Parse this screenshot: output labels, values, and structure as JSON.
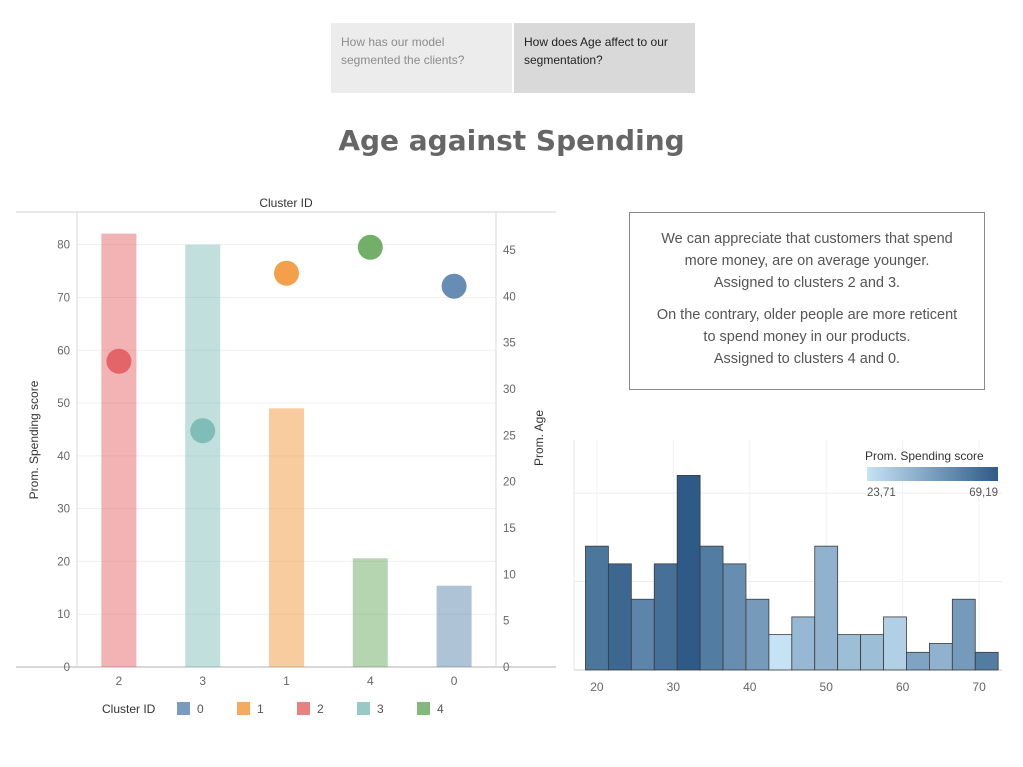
{
  "tabs": [
    {
      "label": "How has our model segmented the clients?",
      "active": false
    },
    {
      "label": "How does Age affect to our segmentation?",
      "active": true
    }
  ],
  "title": "Age against Spending",
  "note": {
    "p1": [
      "We can appreciate that customers that spend",
      "more money, are on average younger.",
      "Assigned to clusters 2 and 3."
    ],
    "p2": [
      "On the contrary, older people are more reticent",
      "to spend money in our products.",
      "Assigned to clusters 4 and 0."
    ]
  },
  "chart_data": [
    {
      "type": "bar",
      "title": "Cluster ID",
      "ylabel": "Prom. Spending score",
      "y2label": "Prom. Age",
      "categories": [
        "2",
        "3",
        "1",
        "4",
        "0"
      ],
      "bar_values": [
        82.1,
        80.0,
        49.0,
        20.6,
        15.4
      ],
      "dot_values": [
        33.0,
        25.5,
        42.5,
        45.3,
        41.1
      ],
      "ylim": [
        0,
        86
      ],
      "y2lim": [
        0,
        49
      ],
      "y_ticks": [
        0,
        10,
        20,
        30,
        40,
        50,
        60,
        70,
        80
      ],
      "y2_ticks": [
        0,
        5,
        10,
        15,
        20,
        25,
        30,
        35,
        40,
        45
      ],
      "colors": {
        "0": "#4e79a7",
        "1": "#f28e2b",
        "2": "#e15759",
        "3": "#76b7b2",
        "4": "#59a14f"
      },
      "legend": {
        "title": "Cluster ID",
        "items": [
          "0",
          "1",
          "2",
          "3",
          "4"
        ]
      },
      "grid": true
    },
    {
      "type": "bar",
      "subtype": "histogram",
      "bins": [
        {
          "x": 20,
          "count": 7,
          "score": 60
        },
        {
          "x": 23,
          "count": 6,
          "score": 65
        },
        {
          "x": 26,
          "count": 4,
          "score": 55
        },
        {
          "x": 29,
          "count": 6,
          "score": 62
        },
        {
          "x": 32,
          "count": 11,
          "score": 69.19
        },
        {
          "x": 35,
          "count": 7,
          "score": 58
        },
        {
          "x": 38,
          "count": 6,
          "score": 52
        },
        {
          "x": 41,
          "count": 4,
          "score": 48
        },
        {
          "x": 44,
          "count": 2,
          "score": 23.71
        },
        {
          "x": 47,
          "count": 3,
          "score": 38
        },
        {
          "x": 50,
          "count": 7,
          "score": 40
        },
        {
          "x": 53,
          "count": 2,
          "score": 36
        },
        {
          "x": 56,
          "count": 2,
          "score": 36
        },
        {
          "x": 59,
          "count": 3,
          "score": 30
        },
        {
          "x": 62,
          "count": 1,
          "score": 45
        },
        {
          "x": 65,
          "count": 1.5,
          "score": 40
        },
        {
          "x": 68,
          "count": 4,
          "score": 48
        },
        {
          "x": 71,
          "count": 1,
          "score": 58
        }
      ],
      "bin_width": 3,
      "xlim": [
        17,
        73
      ],
      "x_ticks": [
        20,
        30,
        40,
        50,
        60,
        70
      ],
      "ylim": [
        0,
        13
      ],
      "legend": {
        "title": "Prom. Spending score",
        "min": "23,71",
        "max": "69,19"
      },
      "color_range": [
        "#c6e3f5",
        "#2e5a87"
      ]
    }
  ]
}
